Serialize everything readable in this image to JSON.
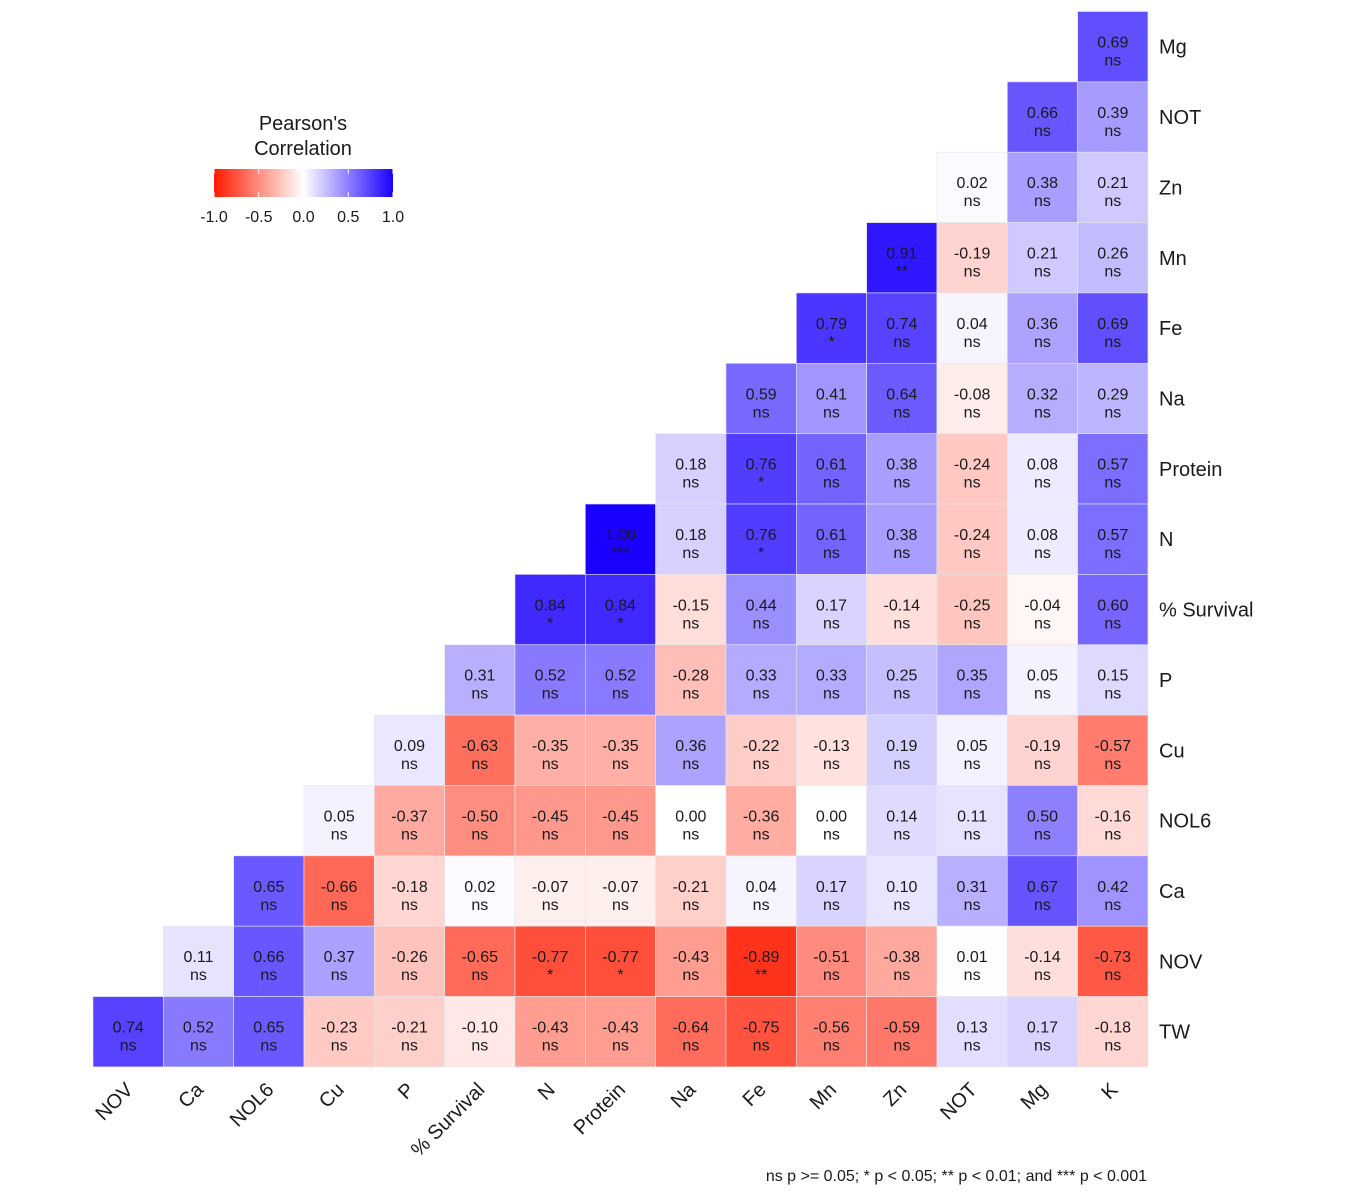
{
  "chart_data": {
    "type": "heatmap",
    "legend": {
      "title_lines": [
        "Pearson's",
        "Correlation"
      ],
      "ticks": [
        "-1.0",
        "-0.5",
        "0.0",
        "0.5",
        "1.0"
      ],
      "range": [
        -1,
        1
      ],
      "colors": {
        "low": "#ff1a00",
        "mid": "#ffffff",
        "high": "#1a00ff"
      },
      "placement": "top-left"
    },
    "x_labels": [
      "NOV",
      "Ca",
      "NOL6",
      "Cu",
      "P",
      "% Survival",
      "N",
      "Protein",
      "Na",
      "Fe",
      "Mn",
      "Zn",
      "NOT",
      "Mg",
      "K"
    ],
    "y_labels": [
      "TW",
      "NOV",
      "Ca",
      "NOL6",
      "Cu",
      "P",
      "% Survival",
      "N",
      "Protein",
      "Na",
      "Fe",
      "Mn",
      "Zn",
      "NOT",
      "Mg"
    ],
    "rows": [
      {
        "label": "Mg",
        "values": [
          0.69
        ],
        "sig": [
          "ns"
        ]
      },
      {
        "label": "NOT",
        "values": [
          0.66,
          0.39
        ],
        "sig": [
          "ns",
          "ns"
        ]
      },
      {
        "label": "Zn",
        "values": [
          0.02,
          0.38,
          0.21
        ],
        "sig": [
          "ns",
          "ns",
          "ns"
        ]
      },
      {
        "label": "Mn",
        "values": [
          0.91,
          -0.19,
          0.21,
          0.26
        ],
        "sig": [
          "**",
          "ns",
          "ns",
          "ns"
        ]
      },
      {
        "label": "Fe",
        "values": [
          0.79,
          0.74,
          0.04,
          0.36,
          0.69
        ],
        "sig": [
          "*",
          "ns",
          "ns",
          "ns",
          "ns"
        ]
      },
      {
        "label": "Na",
        "values": [
          0.59,
          0.41,
          0.64,
          -0.08,
          0.32,
          0.29
        ],
        "sig": [
          "ns",
          "ns",
          "ns",
          "ns",
          "ns",
          "ns"
        ]
      },
      {
        "label": "Protein",
        "values": [
          0.18,
          0.76,
          0.61,
          0.38,
          -0.24,
          0.08,
          0.57
        ],
        "sig": [
          "ns",
          "*",
          "ns",
          "ns",
          "ns",
          "ns",
          "ns"
        ]
      },
      {
        "label": "N",
        "values": [
          1.0,
          0.18,
          0.76,
          0.61,
          0.38,
          -0.24,
          0.08,
          0.57
        ],
        "sig": [
          "***",
          "ns",
          "*",
          "ns",
          "ns",
          "ns",
          "ns",
          "ns"
        ]
      },
      {
        "label": "% Survival",
        "values": [
          0.84,
          0.84,
          -0.15,
          0.44,
          0.17,
          -0.14,
          -0.25,
          -0.04,
          0.6
        ],
        "sig": [
          "*",
          "*",
          "ns",
          "ns",
          "ns",
          "ns",
          "ns",
          "ns",
          "ns"
        ]
      },
      {
        "label": "P",
        "values": [
          0.31,
          0.52,
          0.52,
          -0.28,
          0.33,
          0.33,
          0.25,
          0.35,
          0.05,
          0.15
        ],
        "sig": [
          "ns",
          "ns",
          "ns",
          "ns",
          "ns",
          "ns",
          "ns",
          "ns",
          "ns",
          "ns"
        ]
      },
      {
        "label": "Cu",
        "values": [
          0.09,
          -0.63,
          -0.35,
          -0.35,
          0.36,
          -0.22,
          -0.13,
          0.19,
          0.05,
          -0.19,
          -0.57
        ],
        "sig": [
          "ns",
          "ns",
          "ns",
          "ns",
          "ns",
          "ns",
          "ns",
          "ns",
          "ns",
          "ns",
          "ns"
        ]
      },
      {
        "label": "NOL6",
        "values": [
          0.05,
          -0.37,
          -0.5,
          -0.45,
          -0.45,
          0.0,
          -0.36,
          0.0,
          0.14,
          0.11,
          0.5,
          -0.16
        ],
        "sig": [
          "ns",
          "ns",
          "ns",
          "ns",
          "ns",
          "ns",
          "ns",
          "ns",
          "ns",
          "ns",
          "ns",
          "ns"
        ]
      },
      {
        "label": "Ca",
        "values": [
          0.65,
          -0.66,
          -0.18,
          0.02,
          -0.07,
          -0.07,
          -0.21,
          0.04,
          0.17,
          0.1,
          0.31,
          0.67,
          0.42
        ],
        "sig": [
          "ns",
          "ns",
          "ns",
          "ns",
          "ns",
          "ns",
          "ns",
          "ns",
          "ns",
          "ns",
          "ns",
          "ns",
          "ns"
        ]
      },
      {
        "label": "NOV",
        "values": [
          0.11,
          0.66,
          0.37,
          -0.26,
          -0.65,
          -0.77,
          -0.77,
          -0.43,
          -0.89,
          -0.51,
          -0.38,
          0.01,
          -0.14,
          -0.73
        ],
        "sig": [
          "ns",
          "ns",
          "ns",
          "ns",
          "ns",
          "*",
          "*",
          "ns",
          "**",
          "ns",
          "ns",
          "ns",
          "ns",
          "ns"
        ]
      },
      {
        "label": "TW",
        "values": [
          0.74,
          0.52,
          0.65,
          -0.23,
          -0.21,
          -0.1,
          -0.43,
          -0.43,
          -0.64,
          -0.75,
          -0.56,
          -0.59,
          0.13,
          0.17,
          -0.18
        ],
        "sig": [
          "ns",
          "ns",
          "ns",
          "ns",
          "ns",
          "ns",
          "ns",
          "ns",
          "ns",
          "ns",
          "ns",
          "ns",
          "ns",
          "ns",
          "ns"
        ]
      }
    ],
    "caption": "ns p >= 0.05; * p < 0.05; ** p < 0.01; and *** p < 0.001"
  }
}
